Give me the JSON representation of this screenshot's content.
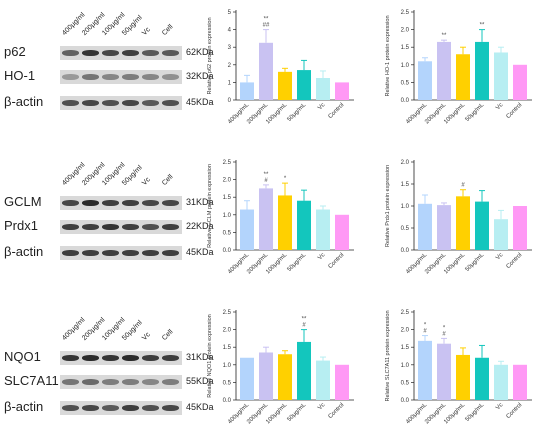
{
  "lanes": [
    "400μg/ml",
    "200μg/ml",
    "100μg/ml",
    "50μg/ml",
    "Vc",
    "Cell"
  ],
  "blots": [
    {
      "rows": [
        {
          "protein": "p62",
          "kda": "62KDa",
          "intensity": [
            0.65,
            0.9,
            0.8,
            0.85,
            0.7,
            0.7
          ]
        },
        {
          "protein": "HO-1",
          "kda": "32KDa",
          "intensity": [
            0.35,
            0.55,
            0.45,
            0.5,
            0.45,
            0.4
          ]
        },
        {
          "protein": "β-actin",
          "kda": "45KDa",
          "intensity": [
            0.75,
            0.8,
            0.75,
            0.8,
            0.7,
            0.75
          ]
        }
      ]
    },
    {
      "rows": [
        {
          "protein": "GCLM",
          "kda": "31KDa",
          "intensity": [
            0.8,
            0.95,
            0.85,
            0.85,
            0.8,
            0.8
          ]
        },
        {
          "protein": "Prdx1",
          "kda": "22KDa",
          "intensity": [
            0.85,
            0.85,
            0.9,
            0.85,
            0.75,
            0.85
          ]
        },
        {
          "protein": "β-actin",
          "kda": "45KDa",
          "intensity": [
            0.85,
            0.85,
            0.85,
            0.85,
            0.85,
            0.85
          ]
        }
      ]
    },
    {
      "rows": [
        {
          "protein": "NQO1",
          "kda": "31KDa",
          "intensity": [
            0.9,
            0.95,
            0.9,
            0.95,
            0.85,
            0.85
          ]
        },
        {
          "protein": "SLC7A11",
          "kda": "55KDa",
          "intensity": [
            0.55,
            0.6,
            0.5,
            0.5,
            0.45,
            0.5
          ]
        },
        {
          "protein": "β-actin",
          "kda": "45KDa",
          "intensity": [
            0.75,
            0.8,
            0.7,
            0.85,
            0.75,
            0.8
          ]
        }
      ]
    }
  ],
  "bar_colors": [
    "#b3d4fc",
    "#c9c2f2",
    "#ffd000",
    "#13c6bd",
    "#b7eef2",
    "#ff99f5"
  ],
  "chart_data": [
    {
      "type": "bar",
      "ylabel": "Relative p62 protein expression",
      "categories": [
        "400μg/mL",
        "200μg/mL",
        "100μg/mL",
        "50μg/mL",
        "Vc",
        "Control"
      ],
      "values": [
        1.0,
        3.25,
        1.6,
        1.7,
        1.25,
        1.0
      ],
      "errors": [
        0.4,
        0.75,
        0.2,
        0.55,
        0.4,
        0.0
      ],
      "annotations": [
        "",
        "**\n##",
        "",
        "",
        "",
        ""
      ],
      "ylim": [
        0,
        5
      ],
      "yticks": [
        0,
        1,
        2,
        3,
        4,
        5
      ],
      "tick_labels": [
        "0",
        "1",
        "2",
        "3",
        "4",
        "5"
      ]
    },
    {
      "type": "bar",
      "ylabel": "Relative HO-1 protein expression",
      "categories": [
        "400μg/mL",
        "200μg/mL",
        "100μg/mL",
        "50μg/mL",
        "Vc",
        "Control"
      ],
      "values": [
        1.1,
        1.65,
        1.3,
        1.65,
        1.35,
        1.0
      ],
      "errors": [
        0.1,
        0.05,
        0.2,
        0.35,
        0.15,
        0.0
      ],
      "annotations": [
        "",
        "**",
        "",
        "**",
        "",
        ""
      ],
      "ylim": [
        0,
        2.5
      ],
      "yticks": [
        0,
        0.5,
        1,
        1.5,
        2,
        2.5
      ],
      "tick_labels": [
        "0.0",
        "0.5",
        "1.0",
        "1.5",
        "2.0",
        "2.5"
      ]
    },
    {
      "type": "bar",
      "ylabel": "Relative GCLM protein expression",
      "categories": [
        "400μg/mL",
        "200μg/mL",
        "100μg/mL",
        "50μg/mL",
        "Vc",
        "Control"
      ],
      "values": [
        1.15,
        1.75,
        1.55,
        1.4,
        1.15,
        1.0
      ],
      "errors": [
        0.25,
        0.1,
        0.35,
        0.3,
        0.1,
        0.0
      ],
      "annotations": [
        "",
        "**\n#",
        "*",
        "",
        "",
        ""
      ],
      "ylim": [
        0,
        2.5
      ],
      "yticks": [
        0,
        0.5,
        1,
        1.5,
        2,
        2.5
      ],
      "tick_labels": [
        "0.0",
        "0.5",
        "1.0",
        "1.5",
        "2.0",
        "2.5"
      ]
    },
    {
      "type": "bar",
      "ylabel": "Relative Prdx1 protein expression",
      "categories": [
        "400μg/mL",
        "200μg/mL",
        "100μg/mL",
        "50μg/mL",
        "Vc",
        "Control"
      ],
      "values": [
        1.05,
        1.02,
        1.22,
        1.1,
        0.7,
        1.0
      ],
      "errors": [
        0.2,
        0.05,
        0.15,
        0.25,
        0.2,
        0.0
      ],
      "annotations": [
        "",
        "",
        "#",
        "",
        "",
        ""
      ],
      "ylim": [
        0,
        2.0
      ],
      "yticks": [
        0,
        0.5,
        1,
        1.5,
        2
      ],
      "tick_labels": [
        "0.0",
        "0.5",
        "1.0",
        "1.5",
        "2.0"
      ]
    },
    {
      "type": "bar",
      "ylabel": "Relative NQO1 protein expression",
      "categories": [
        "400μg/mL",
        "200μg/mL",
        "100μg/mL",
        "50μg/mL",
        "Vc",
        "Control"
      ],
      "values": [
        1.2,
        1.35,
        1.3,
        1.65,
        1.12,
        1.0
      ],
      "errors": [
        0.0,
        0.15,
        0.1,
        0.35,
        0.1,
        0.0
      ],
      "annotations": [
        "",
        "",
        "",
        "**\n#",
        "",
        ""
      ],
      "ylim": [
        0,
        2.5
      ],
      "yticks": [
        0,
        0.5,
        1,
        1.5,
        2,
        2.5
      ],
      "tick_labels": [
        "0.0",
        "0.5",
        "1.0",
        "1.5",
        "2.0",
        "2.5"
      ]
    },
    {
      "type": "bar",
      "ylabel": "Relative SLC7A11 protein expression",
      "categories": [
        "400μg/mL",
        "200μg/mL",
        "100μg/mL",
        "50μg/mL",
        "Vc",
        "Control"
      ],
      "values": [
        1.68,
        1.6,
        1.28,
        1.2,
        1.0,
        1.0
      ],
      "errors": [
        0.15,
        0.15,
        0.2,
        0.35,
        0.1,
        0.0
      ],
      "annotations": [
        "*\n#",
        "*\n#",
        "",
        "",
        "",
        ""
      ],
      "ylim": [
        0,
        2.5
      ],
      "yticks": [
        0,
        0.5,
        1,
        1.5,
        2,
        2.5
      ],
      "tick_labels": [
        "0.0",
        "0.5",
        "1.0",
        "1.5",
        "2.0",
        "2.5"
      ]
    }
  ]
}
